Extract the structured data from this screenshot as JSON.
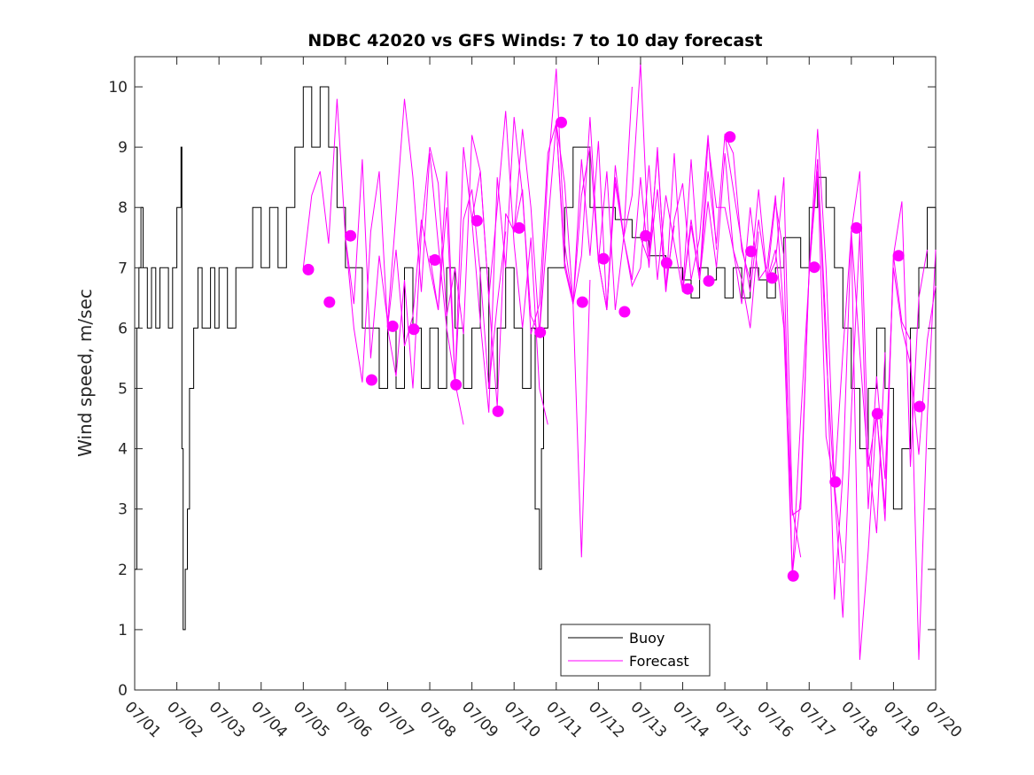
{
  "chart_data": {
    "type": "line",
    "title": "NDBC 42020 vs GFS Winds: 7 to 10 day forecast",
    "xlabel": "",
    "ylabel": "Wind speed, m/sec",
    "xlim": [
      "07/01",
      "07/20"
    ],
    "ylim": [
      0,
      10.5
    ],
    "x_ticks": [
      "07/01",
      "07/02",
      "07/03",
      "07/04",
      "07/05",
      "07/06",
      "07/07",
      "07/08",
      "07/09",
      "07/10",
      "07/11",
      "07/12",
      "07/13",
      "07/14",
      "07/15",
      "07/16",
      "07/17",
      "07/18",
      "07/19",
      "07/20"
    ],
    "y_ticks": [
      0,
      1,
      2,
      3,
      4,
      5,
      6,
      7,
      8,
      9,
      10
    ],
    "grid": false,
    "legend": {
      "placement": "bottom-center",
      "entries": [
        "Buoy",
        "Forecast"
      ]
    },
    "colors": {
      "buoy": "#000000",
      "forecast": "#ff00ff"
    },
    "buoy_series": {
      "name": "Buoy",
      "x_day": [
        1.0,
        1.05,
        1.1,
        1.15,
        1.2,
        1.3,
        1.4,
        1.5,
        1.6,
        1.7,
        1.8,
        1.9,
        2.0,
        2.05,
        2.1,
        2.12,
        2.15,
        2.2,
        2.25,
        2.3,
        2.4,
        2.5,
        2.6,
        2.7,
        2.8,
        2.9,
        3.0,
        3.2,
        3.4,
        3.6,
        3.8,
        4.0,
        4.2,
        4.4,
        4.6,
        4.8,
        5.0,
        5.2,
        5.4,
        5.6,
        5.8,
        6.0,
        6.2,
        6.4,
        6.6,
        6.8,
        7.0,
        7.2,
        7.4,
        7.6,
        7.8,
        8.0,
        8.2,
        8.4,
        8.6,
        8.8,
        9.0,
        9.2,
        9.4,
        9.6,
        9.8,
        10.0,
        10.2,
        10.4,
        10.5,
        10.6,
        10.65,
        10.7,
        10.8,
        11.0,
        11.2,
        11.4,
        11.6,
        11.8,
        12.0,
        12.4,
        12.8,
        13.2,
        13.6,
        14.0,
        14.2,
        14.4,
        14.6,
        14.8,
        15.0,
        15.2,
        15.4,
        15.6,
        15.8,
        16.0,
        16.2,
        16.4,
        16.6,
        16.8,
        17.0,
        17.2,
        17.4,
        17.6,
        17.8,
        18.0,
        18.2,
        18.4,
        18.6,
        18.8,
        19.0,
        19.2,
        19.4,
        19.6,
        19.8,
        20.0
      ],
      "y": [
        2,
        6,
        7,
        8,
        7,
        6,
        7,
        6,
        7,
        7,
        6,
        7,
        8,
        8,
        9,
        4,
        1,
        2,
        3,
        5,
        6,
        7,
        6,
        6,
        7,
        6,
        7,
        6,
        7,
        7,
        8,
        7,
        8,
        7,
        8,
        9,
        10,
        9,
        10,
        9,
        8,
        7,
        7,
        6,
        6,
        5,
        6,
        5,
        7,
        6,
        5,
        6,
        5,
        7,
        6,
        5,
        6,
        7,
        5,
        6,
        7,
        6,
        5,
        6,
        3,
        2,
        4,
        6,
        7,
        7,
        8,
        9,
        9,
        8,
        8,
        7.8,
        7.5,
        7.2,
        7.0,
        6.8,
        6.5,
        7.0,
        6.8,
        7.0,
        6.5,
        7.0,
        6.5,
        7.0,
        6.8,
        6.5,
        7.0,
        7.5,
        7.5,
        7.0,
        8.0,
        8.5,
        8.0,
        7.0,
        6.0,
        5.0,
        4.0,
        5.0,
        6.0,
        5.0,
        3.0,
        4.0,
        6.0,
        7.0,
        8.0,
        6.0
      ]
    },
    "forecast_series": [
      {
        "x_day": [
          5.0,
          5.2,
          5.4,
          5.6,
          5.8,
          6.0,
          6.2,
          6.4,
          6.6,
          6.8,
          7.0,
          7.2,
          7.4,
          7.6,
          7.8,
          8.0,
          8.2,
          8.4,
          8.6,
          8.8
        ],
        "y": [
          7.0,
          8.2,
          8.6,
          7.4,
          9.8,
          7.5,
          6.0,
          5.1,
          7.6,
          8.6,
          6.0,
          7.3,
          5.7,
          6.2,
          7.8,
          7.0,
          6.3,
          8.6,
          5.1,
          4.4
        ]
      },
      {
        "x_day": [
          6.0,
          6.2,
          6.4,
          6.6,
          6.8,
          7.0,
          7.2,
          7.4,
          7.6,
          7.8,
          8.0,
          8.2,
          8.4,
          8.6,
          8.8,
          9.0,
          9.2,
          9.4,
          9.6,
          9.8
        ],
        "y": [
          7.5,
          6.4,
          8.8,
          5.5,
          7.2,
          6.1,
          7.9,
          9.8,
          8.5,
          6.6,
          8.9,
          7.4,
          6.0,
          5.1,
          7.8,
          8.3,
          6.9,
          5.0,
          6.4,
          7.6
        ]
      },
      {
        "x_day": [
          7.0,
          7.2,
          7.4,
          7.6,
          7.8,
          8.0,
          8.2,
          8.4,
          8.6,
          8.8,
          9.0,
          9.2,
          9.4,
          9.6,
          9.8,
          10.0,
          10.2,
          10.4,
          10.6,
          10.8
        ],
        "y": [
          6.0,
          5.2,
          6.8,
          5.0,
          7.6,
          9.0,
          8.4,
          6.2,
          7.0,
          5.9,
          9.2,
          8.6,
          6.5,
          8.0,
          9.6,
          7.4,
          6.0,
          7.5,
          5.0,
          4.4
        ]
      },
      {
        "x_day": [
          8.0,
          8.2,
          8.4,
          8.6,
          8.8,
          9.0,
          9.2,
          9.4,
          9.6,
          9.8,
          10.0,
          10.2,
          10.4,
          10.6,
          10.8,
          11.0,
          11.2,
          11.4,
          11.6,
          11.8
        ],
        "y": [
          7.2,
          6.3,
          8.0,
          5.1,
          9.0,
          7.8,
          6.1,
          4.6,
          8.5,
          7.0,
          9.5,
          8.2,
          6.2,
          5.9,
          8.6,
          10.3,
          7.4,
          6.4,
          2.2,
          6.8
        ]
      },
      {
        "x_day": [
          9.0,
          9.2,
          9.4,
          9.6,
          9.8,
          10.0,
          10.2,
          10.4,
          10.6,
          10.8,
          11.0,
          11.2,
          11.4,
          11.6,
          11.8,
          12.0,
          12.2,
          12.4,
          12.6,
          12.8
        ],
        "y": [
          7.8,
          8.6,
          6.5,
          4.7,
          7.9,
          7.6,
          9.3,
          8.0,
          5.9,
          7.7,
          9.4,
          8.4,
          6.4,
          7.2,
          9.5,
          7.1,
          8.6,
          6.3,
          7.5,
          10.0
        ]
      },
      {
        "x_day": [
          10.0,
          10.2,
          10.4,
          10.6,
          10.8,
          11.0,
          11.2,
          11.4,
          11.6,
          11.8,
          12.0,
          12.2,
          12.4,
          12.6,
          12.8,
          13.0,
          13.2,
          13.4,
          13.6,
          13.8
        ],
        "y": [
          7.6,
          8.3,
          5.9,
          6.4,
          8.9,
          9.4,
          7.1,
          6.4,
          8.8,
          7.2,
          9.1,
          6.3,
          8.5,
          7.5,
          8.2,
          10.4,
          7.2,
          8.9,
          6.7,
          7.7
        ]
      },
      {
        "x_day": [
          11.0,
          11.2,
          11.4,
          11.6,
          11.8,
          12.0,
          12.2,
          12.4,
          12.6,
          12.8,
          13.0,
          13.2,
          13.4,
          13.6,
          13.8,
          14.0,
          14.2,
          14.4,
          14.6,
          14.8
        ],
        "y": [
          9.4,
          7.0,
          6.4,
          8.2,
          9.0,
          7.1,
          6.3,
          8.7,
          7.5,
          6.8,
          8.5,
          7.0,
          9.0,
          6.6,
          7.8,
          8.4,
          6.8,
          7.5,
          9.2,
          7.3
        ]
      },
      {
        "x_day": [
          12.0,
          12.2,
          12.4,
          12.6,
          12.8,
          13.0,
          13.2,
          13.4,
          13.6,
          13.8,
          14.0,
          14.2,
          14.4,
          14.6,
          14.8,
          15.0,
          15.2,
          15.4,
          15.6,
          15.8
        ],
        "y": [
          7.1,
          6.3,
          8.4,
          7.5,
          6.7,
          7.0,
          8.7,
          6.8,
          8.2,
          7.4,
          6.6,
          8.8,
          6.8,
          9.1,
          8.0,
          8.0,
          7.3,
          6.8,
          6.0,
          7.6
        ]
      },
      {
        "x_day": [
          13.0,
          13.2,
          13.4,
          13.6,
          13.8,
          14.0,
          14.2,
          14.4,
          14.6,
          14.8,
          15.0,
          15.2,
          15.4,
          15.6,
          15.8,
          16.0,
          16.2,
          16.4,
          16.6,
          16.8
        ],
        "y": [
          7.5,
          7.1,
          8.3,
          6.6,
          8.9,
          6.6,
          7.8,
          6.8,
          8.6,
          7.4,
          9.2,
          8.9,
          7.3,
          6.8,
          8.3,
          6.8,
          7.1,
          8.5,
          3.0,
          2.2
        ]
      },
      {
        "x_day": [
          14.0,
          14.2,
          14.4,
          14.6,
          14.8,
          15.0,
          15.2,
          15.4,
          15.6,
          15.8,
          16.0,
          16.2,
          16.4,
          16.6,
          16.8,
          17.0,
          17.2,
          17.4,
          17.6,
          17.8
        ],
        "y": [
          6.6,
          7.7,
          6.8,
          8.1,
          7.0,
          8.9,
          7.3,
          6.4,
          8.0,
          6.8,
          7.0,
          8.2,
          6.2,
          2.9,
          3.0,
          7.0,
          9.3,
          7.0,
          3.4,
          2.1
        ]
      },
      {
        "x_day": [
          15.0,
          15.2,
          15.4,
          15.6,
          15.8,
          16.0,
          16.2,
          16.4,
          16.6,
          16.8,
          17.0,
          17.2,
          17.4,
          17.6,
          17.8,
          18.0,
          18.2,
          18.4,
          18.6,
          18.8
        ],
        "y": [
          9.2,
          8.3,
          7.4,
          6.6,
          7.8,
          6.8,
          8.1,
          7.2,
          1.9,
          4.5,
          6.9,
          8.8,
          6.0,
          1.5,
          3.6,
          7.6,
          8.6,
          3.9,
          2.6,
          5.6
        ]
      },
      {
        "x_day": [
          16.0,
          16.2,
          16.4,
          16.6,
          16.8,
          17.0,
          17.2,
          17.4,
          17.6,
          17.8,
          18.0,
          18.2,
          18.4,
          18.6,
          18.8,
          19.0,
          19.2,
          19.4,
          19.6,
          19.8
        ],
        "y": [
          6.8,
          7.3,
          6.0,
          1.9,
          3.2,
          7.0,
          8.6,
          4.2,
          3.4,
          5.6,
          7.6,
          0.5,
          2.3,
          4.6,
          3.0,
          7.2,
          8.1,
          3.7,
          6.5,
          7.3
        ]
      },
      {
        "x_day": [
          17.0,
          17.2,
          17.4,
          17.6,
          17.8,
          18.0,
          18.2,
          18.4,
          18.6,
          18.8,
          19.0,
          19.2,
          19.4,
          19.6,
          19.8,
          20.0
        ],
        "y": [
          7.0,
          8.8,
          5.6,
          3.3,
          1.2,
          4.6,
          7.6,
          3.0,
          5.2,
          3.5,
          7.0,
          6.0,
          5.4,
          3.9,
          5.8,
          6.7
        ]
      },
      {
        "x_day": [
          18.0,
          18.2,
          18.4,
          18.6,
          18.8,
          19.0,
          19.2,
          19.4,
          19.6,
          19.8,
          20.0
        ],
        "y": [
          7.6,
          5.6,
          3.7,
          4.6,
          2.8,
          7.2,
          6.1,
          5.8,
          0.5,
          4.5,
          7.3
        ]
      }
    ],
    "forecast_markers": {
      "x_day": [
        5.12,
        5.62,
        6.12,
        6.62,
        7.12,
        7.62,
        8.12,
        8.62,
        9.12,
        9.62,
        10.12,
        10.62,
        11.12,
        11.62,
        12.12,
        12.62,
        13.12,
        13.62,
        14.12,
        14.62,
        15.12,
        15.62,
        16.12,
        16.62,
        17.12,
        17.62,
        18.12,
        18.62,
        19.12,
        19.62
      ],
      "y": [
        6.97,
        6.43,
        7.53,
        5.14,
        6.03,
        5.98,
        7.13,
        5.06,
        7.78,
        4.62,
        7.66,
        5.93,
        9.41,
        6.43,
        7.15,
        6.27,
        7.53,
        7.08,
        6.65,
        6.78,
        9.17,
        7.27,
        6.83,
        1.89,
        7.01,
        3.45,
        7.66,
        4.58,
        7.2,
        4.7
      ]
    }
  }
}
